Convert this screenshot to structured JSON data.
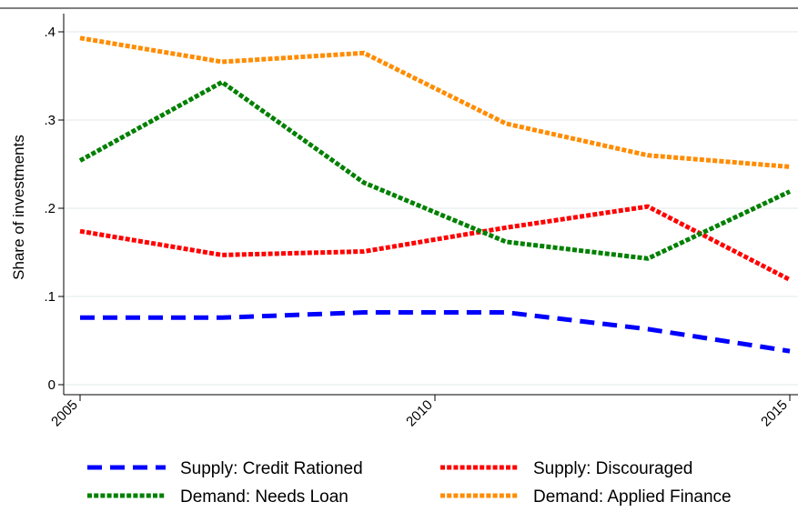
{
  "chart_data": {
    "type": "line",
    "title": "",
    "xlabel": "",
    "ylabel": "Share of investments",
    "x": [
      2005,
      2007,
      2009,
      2011,
      2013,
      2015
    ],
    "xlim": [
      2005,
      2015
    ],
    "ylim": [
      0,
      0.4
    ],
    "xticks": [
      "2005",
      "2010",
      "2015"
    ],
    "yticks": [
      "0",
      ".1",
      ".2",
      ".3",
      ".4"
    ],
    "grid": true,
    "legend_position": "bottom",
    "series": [
      {
        "name": "Supply: Credit Rationed",
        "color": "#0000ff",
        "style": "dashed",
        "values": [
          0.076,
          0.076,
          0.082,
          0.082,
          0.063,
          0.038
        ]
      },
      {
        "name": "Supply: Discouraged",
        "color": "#ff0000",
        "style": "dotted",
        "values": [
          0.174,
          0.147,
          0.151,
          0.178,
          0.202,
          0.119
        ]
      },
      {
        "name": "Demand: Needs Loan",
        "color": "#008000",
        "style": "dotted",
        "values": [
          0.254,
          0.343,
          0.229,
          0.162,
          0.143,
          0.219
        ]
      },
      {
        "name": "Demand: Applied Finance",
        "color": "#ff8c00",
        "style": "dotted",
        "values": [
          0.393,
          0.366,
          0.376,
          0.296,
          0.26,
          0.247
        ]
      }
    ]
  }
}
